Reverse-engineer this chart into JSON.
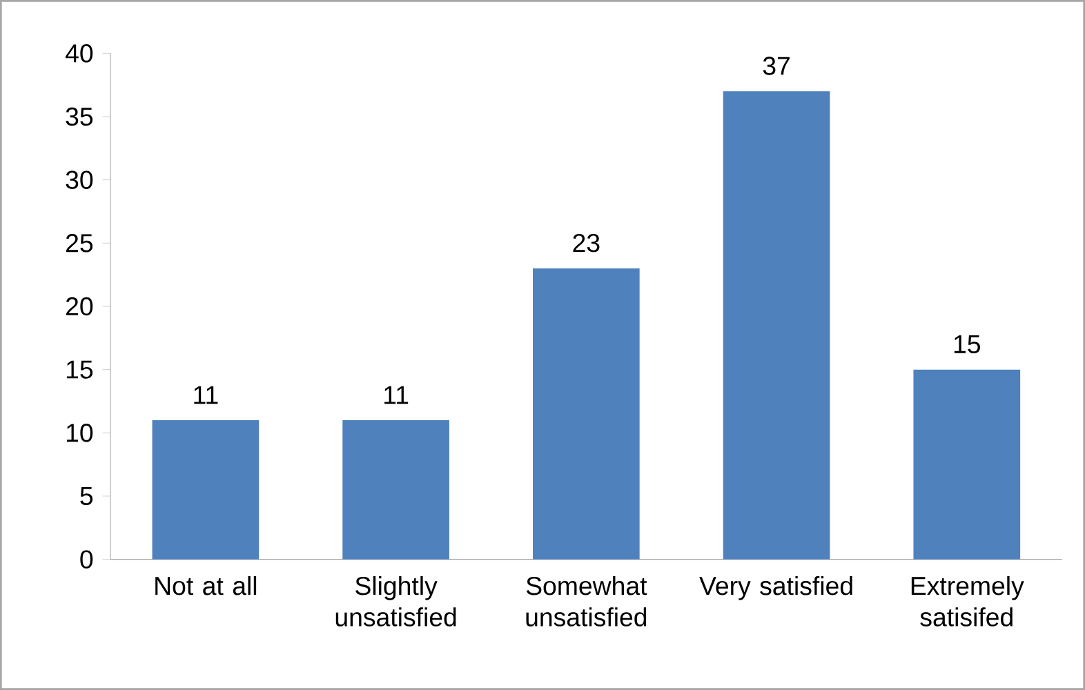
{
  "chart_data": {
    "type": "bar",
    "categories": [
      "Not at all",
      "Slightly unsatisfied",
      "Somewhat unsatisfied",
      "Very satisfied",
      "Extremely satisifed"
    ],
    "values": [
      11,
      11,
      23,
      37,
      15
    ],
    "color": "#4f81bd",
    "ylim": [
      0,
      40
    ],
    "yticks": [
      0,
      5,
      10,
      15,
      20,
      25,
      30,
      35,
      40
    ],
    "data_labels": true
  }
}
